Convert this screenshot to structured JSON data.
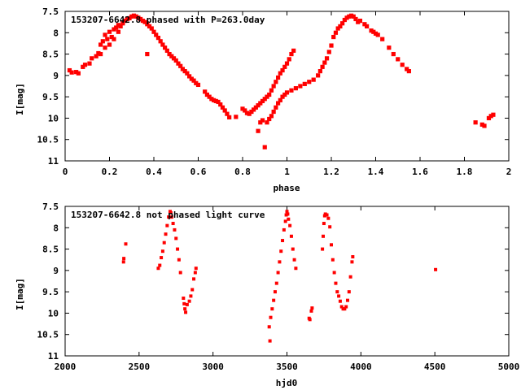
{
  "chart_data": [
    {
      "type": "scatter",
      "title": "153207-6642.8 phased with P=263.0day",
      "xlabel": "phase",
      "ylabel": "I[mag]",
      "xlim": [
        0,
        2
      ],
      "ylim": [
        11,
        7.5
      ],
      "y_reversed": true,
      "xticks": [
        0,
        0.2,
        0.4,
        0.6,
        0.8,
        1,
        1.2,
        1.4,
        1.6,
        1.8,
        2
      ],
      "xtick_labels": [
        "0",
        "0.2",
        "0.4",
        "0.6",
        "0.8",
        "1",
        "1.2",
        "1.4",
        "1.6",
        "1.8",
        "2"
      ],
      "yticks": [
        7.5,
        8,
        8.5,
        9,
        9.5,
        10,
        10.5,
        11
      ],
      "ytick_labels": [
        "7.5",
        "8",
        "8.5",
        "9",
        "9.5",
        "10",
        "10.5",
        "11"
      ],
      "grid": false,
      "marker_color": "#ff0000",
      "series": [
        {
          "points": [
            [
              0.02,
              8.88
            ],
            [
              0.03,
              8.93
            ],
            [
              0.05,
              8.92
            ],
            [
              0.06,
              8.95
            ],
            [
              0.08,
              8.8
            ],
            [
              0.09,
              8.75
            ],
            [
              0.11,
              8.72
            ],
            [
              0.12,
              8.6
            ],
            [
              0.14,
              8.55
            ],
            [
              0.15,
              8.48
            ],
            [
              0.16,
              8.5
            ],
            [
              0.16,
              8.28
            ],
            [
              0.17,
              8.2
            ],
            [
              0.18,
              8.35
            ],
            [
              0.18,
              8.05
            ],
            [
              0.19,
              8.15
            ],
            [
              0.2,
              8.28
            ],
            [
              0.2,
              7.98
            ],
            [
              0.21,
              8.1
            ],
            [
              0.22,
              7.92
            ],
            [
              0.22,
              8.15
            ],
            [
              0.23,
              7.88
            ],
            [
              0.24,
              7.98
            ],
            [
              0.24,
              7.82
            ],
            [
              0.25,
              7.85
            ],
            [
              0.26,
              7.78
            ],
            [
              0.27,
              7.72
            ],
            [
              0.28,
              7.68
            ],
            [
              0.29,
              7.66
            ],
            [
              0.3,
              7.62
            ],
            [
              0.31,
              7.6
            ],
            [
              0.32,
              7.62
            ],
            [
              0.33,
              7.65
            ],
            [
              0.34,
              7.68
            ],
            [
              0.35,
              7.72
            ],
            [
              0.36,
              7.75
            ],
            [
              0.37,
              8.5
            ],
            [
              0.37,
              7.8
            ],
            [
              0.38,
              7.85
            ],
            [
              0.39,
              7.9
            ],
            [
              0.4,
              7.98
            ],
            [
              0.41,
              8.05
            ],
            [
              0.42,
              8.12
            ],
            [
              0.43,
              8.2
            ],
            [
              0.44,
              8.28
            ],
            [
              0.45,
              8.35
            ],
            [
              0.46,
              8.42
            ],
            [
              0.47,
              8.5
            ],
            [
              0.48,
              8.55
            ],
            [
              0.49,
              8.6
            ],
            [
              0.5,
              8.65
            ],
            [
              0.51,
              8.72
            ],
            [
              0.52,
              8.78
            ],
            [
              0.53,
              8.85
            ],
            [
              0.54,
              8.9
            ],
            [
              0.55,
              8.95
            ],
            [
              0.56,
              9.02
            ],
            [
              0.57,
              9.08
            ],
            [
              0.58,
              9.12
            ],
            [
              0.59,
              9.18
            ],
            [
              0.6,
              9.22
            ],
            [
              0.63,
              9.38
            ],
            [
              0.64,
              9.45
            ],
            [
              0.65,
              9.5
            ],
            [
              0.66,
              9.55
            ],
            [
              0.67,
              9.58
            ],
            [
              0.68,
              9.6
            ],
            [
              0.69,
              9.62
            ],
            [
              0.7,
              9.68
            ],
            [
              0.71,
              9.75
            ],
            [
              0.72,
              9.82
            ],
            [
              0.73,
              9.9
            ],
            [
              0.74,
              9.98
            ],
            [
              0.77,
              9.97
            ],
            [
              0.8,
              9.78
            ],
            [
              0.81,
              9.82
            ],
            [
              0.82,
              9.88
            ],
            [
              0.83,
              9.9
            ],
            [
              0.84,
              9.85
            ],
            [
              0.85,
              9.8
            ],
            [
              0.86,
              9.75
            ],
            [
              0.87,
              9.7
            ],
            [
              0.88,
              9.65
            ],
            [
              0.89,
              9.6
            ],
            [
              0.9,
              9.55
            ],
            [
              0.91,
              9.5
            ],
            [
              0.92,
              9.45
            ],
            [
              0.93,
              9.35
            ],
            [
              0.94,
              9.25
            ],
            [
              0.95,
              9.15
            ],
            [
              0.96,
              9.05
            ],
            [
              0.97,
              8.95
            ],
            [
              0.98,
              8.88
            ],
            [
              0.99,
              8.8
            ],
            [
              1.0,
              8.72
            ],
            [
              1.01,
              8.62
            ],
            [
              1.02,
              8.5
            ],
            [
              1.03,
              8.42
            ],
            [
              0.87,
              10.3
            ],
            [
              0.88,
              10.1
            ],
            [
              0.89,
              10.05
            ],
            [
              0.9,
              10.68
            ],
            [
              0.91,
              10.1
            ],
            [
              0.92,
              10.02
            ],
            [
              0.93,
              9.95
            ],
            [
              0.94,
              9.85
            ],
            [
              0.95,
              9.75
            ],
            [
              0.96,
              9.65
            ],
            [
              0.97,
              9.58
            ],
            [
              0.98,
              9.5
            ],
            [
              0.99,
              9.45
            ],
            [
              1.0,
              9.4
            ],
            [
              1.02,
              9.35
            ],
            [
              1.04,
              9.3
            ],
            [
              1.06,
              9.25
            ],
            [
              1.08,
              9.2
            ],
            [
              1.1,
              9.15
            ],
            [
              1.12,
              9.1
            ],
            [
              1.14,
              9.0
            ],
            [
              1.15,
              8.9
            ],
            [
              1.16,
              8.8
            ],
            [
              1.17,
              8.7
            ],
            [
              1.18,
              8.6
            ],
            [
              1.19,
              8.45
            ],
            [
              1.2,
              8.3
            ],
            [
              1.21,
              8.1
            ],
            [
              1.22,
              8.0
            ],
            [
              1.23,
              7.9
            ],
            [
              1.24,
              7.85
            ],
            [
              1.25,
              7.78
            ],
            [
              1.26,
              7.7
            ],
            [
              1.27,
              7.65
            ],
            [
              1.28,
              7.62
            ],
            [
              1.29,
              7.6
            ],
            [
              1.3,
              7.62
            ],
            [
              1.31,
              7.68
            ],
            [
              1.32,
              7.75
            ],
            [
              1.33,
              7.72
            ],
            [
              1.35,
              7.8
            ],
            [
              1.36,
              7.85
            ],
            [
              1.38,
              7.95
            ],
            [
              1.39,
              7.98
            ],
            [
              1.4,
              8.02
            ],
            [
              1.41,
              8.05
            ],
            [
              1.43,
              8.15
            ],
            [
              1.46,
              8.35
            ],
            [
              1.48,
              8.5
            ],
            [
              1.5,
              8.62
            ],
            [
              1.52,
              8.75
            ],
            [
              1.54,
              8.85
            ],
            [
              1.55,
              8.9
            ],
            [
              1.85,
              10.1
            ],
            [
              1.88,
              10.15
            ],
            [
              1.89,
              10.18
            ],
            [
              1.91,
              10.0
            ],
            [
              1.92,
              9.95
            ],
            [
              1.93,
              9.92
            ]
          ]
        }
      ]
    },
    {
      "type": "scatter",
      "title": "153207-6642.8 not phased light curve",
      "xlabel": "hjd0",
      "ylabel": "I[mag]",
      "xlim": [
        2000,
        5000
      ],
      "ylim": [
        11,
        7.5
      ],
      "y_reversed": true,
      "xticks": [
        2000,
        2500,
        3000,
        3500,
        4000,
        4500,
        5000
      ],
      "xtick_labels": [
        "2000",
        "2500",
        "3000",
        "3500",
        "4000",
        "4500",
        "5000"
      ],
      "yticks": [
        7.5,
        8,
        8.5,
        9,
        9.5,
        10,
        10.5,
        11
      ],
      "ytick_labels": [
        "7.5",
        "8",
        "8.5",
        "9",
        "9.5",
        "10",
        "10.5",
        "11"
      ],
      "grid": false,
      "marker_color": "#ff0000",
      "series": [
        {
          "points": [
            [
              2395,
              8.8
            ],
            [
              2397,
              8.72
            ],
            [
              2410,
              8.38
            ],
            [
              2630,
              8.95
            ],
            [
              2640,
              8.88
            ],
            [
              2650,
              8.7
            ],
            [
              2660,
              8.55
            ],
            [
              2670,
              8.35
            ],
            [
              2680,
              8.15
            ],
            [
              2690,
              7.95
            ],
            [
              2700,
              7.75
            ],
            [
              2710,
              7.62
            ],
            [
              2715,
              7.65
            ],
            [
              2720,
              7.75
            ],
            [
              2730,
              7.9
            ],
            [
              2740,
              8.05
            ],
            [
              2750,
              8.25
            ],
            [
              2760,
              8.5
            ],
            [
              2770,
              8.75
            ],
            [
              2780,
              9.05
            ],
            [
              2800,
              9.65
            ],
            [
              2805,
              9.78
            ],
            [
              2810,
              9.9
            ],
            [
              2815,
              9.98
            ],
            [
              2825,
              9.8
            ],
            [
              2840,
              9.72
            ],
            [
              2850,
              9.6
            ],
            [
              2860,
              9.45
            ],
            [
              2870,
              9.2
            ],
            [
              2880,
              9.05
            ],
            [
              2885,
              8.95
            ],
            [
              3380,
              10.32
            ],
            [
              3385,
              10.65
            ],
            [
              3390,
              10.1
            ],
            [
              3400,
              9.9
            ],
            [
              3410,
              9.7
            ],
            [
              3420,
              9.5
            ],
            [
              3430,
              9.3
            ],
            [
              3440,
              9.05
            ],
            [
              3450,
              8.8
            ],
            [
              3460,
              8.55
            ],
            [
              3470,
              8.3
            ],
            [
              3480,
              8.05
            ],
            [
              3490,
              7.85
            ],
            [
              3495,
              7.7
            ],
            [
              3500,
              7.62
            ],
            [
              3505,
              7.68
            ],
            [
              3510,
              7.8
            ],
            [
              3520,
              7.95
            ],
            [
              3530,
              8.2
            ],
            [
              3540,
              8.5
            ],
            [
              3550,
              8.75
            ],
            [
              3560,
              8.95
            ],
            [
              3650,
              10.12
            ],
            [
              3655,
              10.15
            ],
            [
              3665,
              9.95
            ],
            [
              3670,
              9.88
            ],
            [
              3740,
              8.5
            ],
            [
              3745,
              8.2
            ],
            [
              3750,
              7.9
            ],
            [
              3755,
              7.72
            ],
            [
              3760,
              7.68
            ],
            [
              3770,
              7.7
            ],
            [
              3780,
              7.78
            ],
            [
              3790,
              7.98
            ],
            [
              3800,
              8.4
            ],
            [
              3810,
              8.75
            ],
            [
              3820,
              9.05
            ],
            [
              3830,
              9.3
            ],
            [
              3840,
              9.5
            ],
            [
              3850,
              9.6
            ],
            [
              3860,
              9.72
            ],
            [
              3870,
              9.85
            ],
            [
              3880,
              9.9
            ],
            [
              3890,
              9.9
            ],
            [
              3900,
              9.85
            ],
            [
              3910,
              9.7
            ],
            [
              3920,
              9.5
            ],
            [
              3930,
              9.15
            ],
            [
              3940,
              8.8
            ],
            [
              3945,
              8.68
            ],
            [
              4505,
              8.98
            ]
          ]
        }
      ]
    }
  ]
}
